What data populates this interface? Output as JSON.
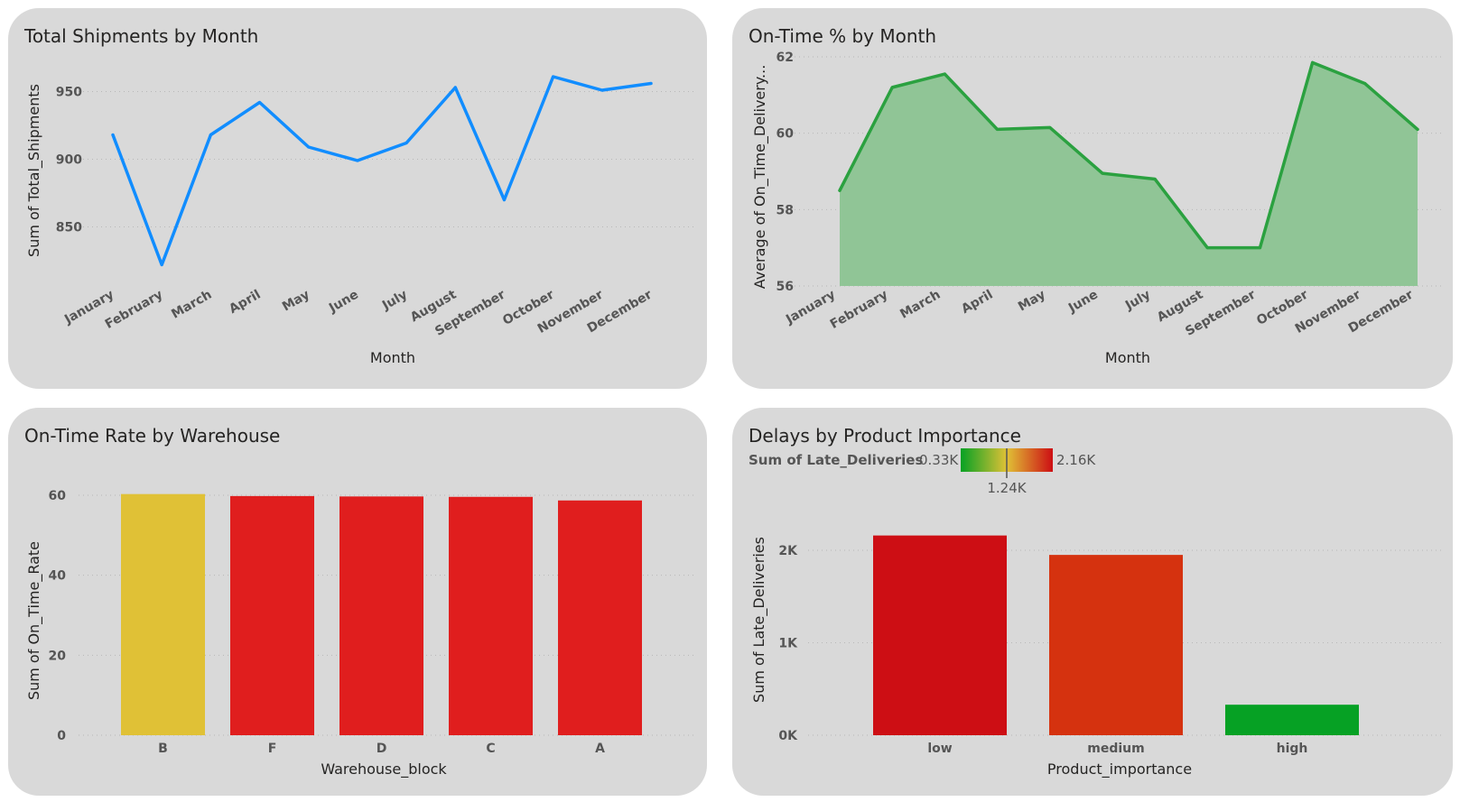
{
  "chart_data": [
    {
      "type": "line",
      "title": "Total Shipments by Month",
      "xlabel": "Month",
      "ylabel": "Sum of Total_Shipments",
      "categories": [
        "January",
        "February",
        "March",
        "April",
        "May",
        "June",
        "July",
        "August",
        "September",
        "October",
        "November",
        "December"
      ],
      "values": [
        918,
        822,
        918,
        942,
        909,
        899,
        912,
        953,
        870,
        961,
        951,
        956
      ],
      "y_ticks": [
        "850",
        "900",
        "950"
      ],
      "ylim": [
        815,
        965
      ],
      "color": "#118dff",
      "grid": true
    },
    {
      "type": "area",
      "title": "On-Time % by Month",
      "xlabel": "Month",
      "ylabel": "Average of On_Time_Delivery...",
      "categories": [
        "January",
        "February",
        "March",
        "April",
        "May",
        "June",
        "July",
        "August",
        "September",
        "October",
        "November",
        "December"
      ],
      "values": [
        58.5,
        61.2,
        61.55,
        60.1,
        60.15,
        58.95,
        58.8,
        57.0,
        57.0,
        61.85,
        61.3,
        60.1
      ],
      "y_ticks": [
        "56",
        "58",
        "60",
        "62"
      ],
      "ylim": [
        56,
        62
      ],
      "line_color": "#2ba140",
      "fill_color": "#90c596",
      "grid": true
    },
    {
      "type": "bar",
      "title": "On-Time Rate by Warehouse",
      "xlabel": "Warehouse_block",
      "ylabel": "Sum of On_Time_Rate",
      "categories": [
        "B",
        "F",
        "D",
        "C",
        "A"
      ],
      "values": [
        60.3,
        59.8,
        59.7,
        59.6,
        58.7
      ],
      "colors": [
        "#e0c136",
        "#e01e1e",
        "#e01e1e",
        "#e01e1e",
        "#e01e1e"
      ],
      "y_ticks": [
        "0",
        "20",
        "40",
        "60"
      ],
      "ylim": [
        0,
        60
      ],
      "grid": true
    },
    {
      "type": "bar",
      "title": "Delays by Product Importance",
      "xlabel": "Product_importance",
      "ylabel": "Sum of Late_Deliveries",
      "categories": [
        "low",
        "medium",
        "high"
      ],
      "values": [
        2160,
        1950,
        330
      ],
      "colors": [
        "#cd0e14",
        "#d5320f",
        "#06a124"
      ],
      "y_ticks": [
        "0K",
        "1K",
        "2K"
      ],
      "ylim": [
        0,
        2000
      ],
      "grid": true,
      "color_scale": {
        "title": "Sum of Late_Deliveries",
        "min_label": "0.33K",
        "mid_label": "1.24K",
        "max_label": "2.16K",
        "min_color": "#06a124",
        "mid_color": "#e0c136",
        "max_color": "#cd0e14"
      }
    }
  ]
}
